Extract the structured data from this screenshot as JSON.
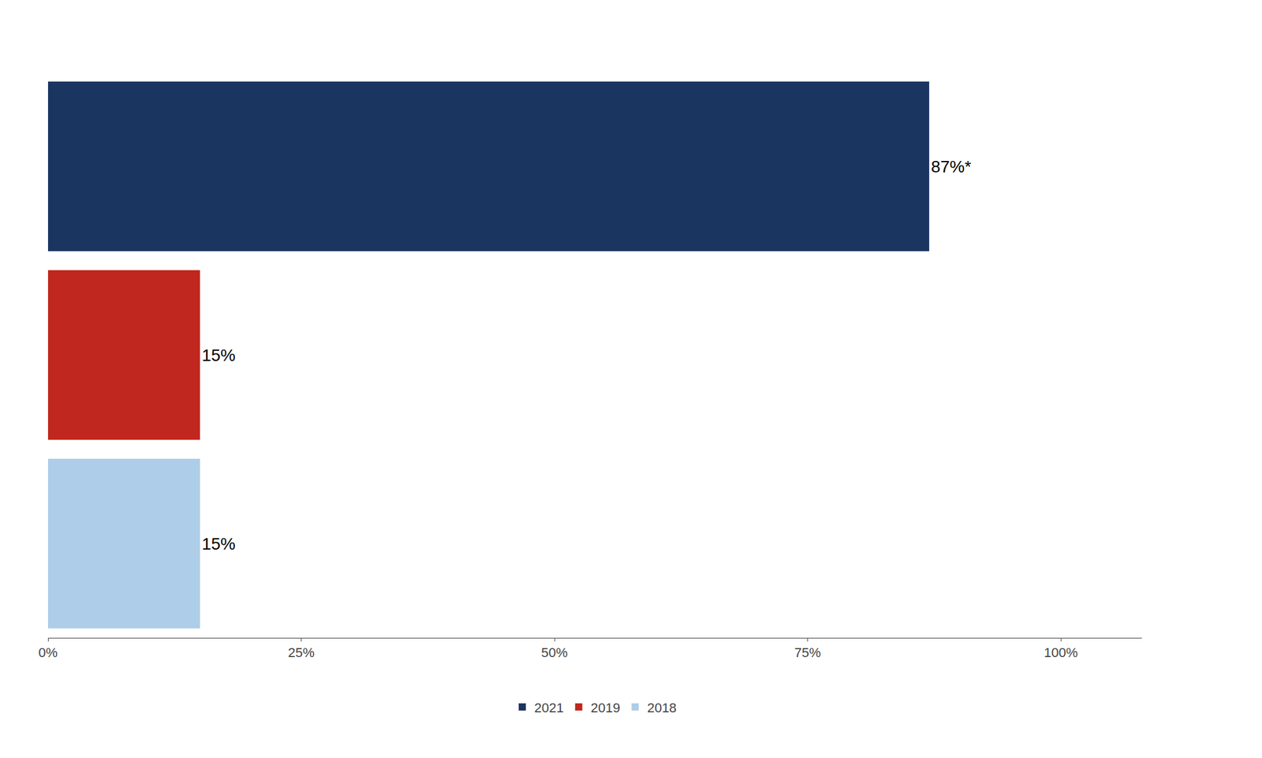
{
  "chart_data": {
    "type": "bar",
    "orientation": "horizontal",
    "categories": [
      "2021",
      "2019",
      "2018"
    ],
    "values": [
      87,
      15,
      15
    ],
    "value_labels": [
      "87%*",
      "15%",
      "15%"
    ],
    "data_labels": true,
    "colors": [
      "#1a3560",
      "#c0271e",
      "#aecde8"
    ],
    "xlim": [
      0,
      108
    ],
    "xticks": [
      {
        "value": 0,
        "label": "0%"
      },
      {
        "value": 25,
        "label": "25%"
      },
      {
        "value": 50,
        "label": "50%"
      },
      {
        "value": 75,
        "label": "75%"
      },
      {
        "value": 100,
        "label": "100%"
      }
    ],
    "grid": false,
    "tick_labels": "x",
    "legend": "bottom"
  }
}
